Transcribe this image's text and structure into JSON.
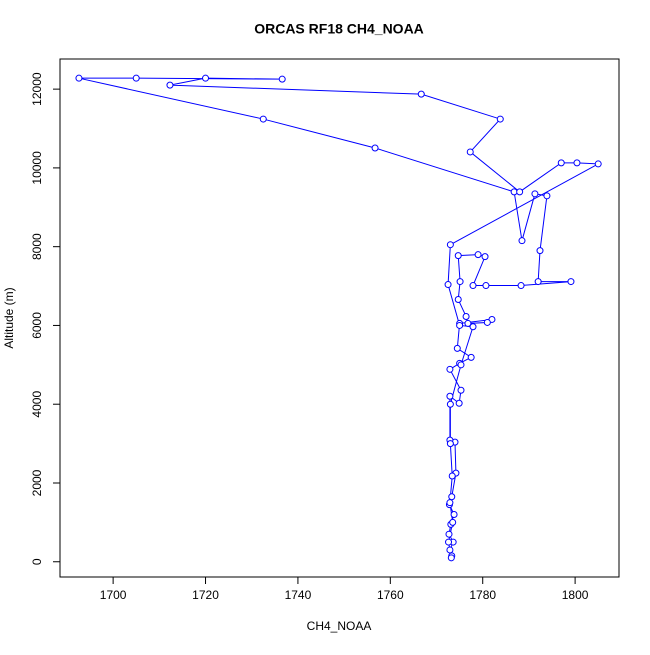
{
  "chart_data": {
    "type": "line",
    "title": "ORCAS RF18 CH4_NOAA",
    "x_label": "CH4_NOAA",
    "y_label": "Altitude (m)",
    "series": [
      {
        "color": "#0000ff",
        "markers": true,
        "x": [
          1773.3,
          1772.9,
          1773.6,
          1772.7,
          1773.1,
          1773.8,
          1772.8,
          1773.3,
          1774.2,
          1774.0,
          1772.9,
          1772.9,
          1774.9,
          1775.3,
          1772.9,
          1775.0,
          1777.5,
          1774.5,
          1775.0,
          1782.0,
          1781.0,
          1776.8,
          1776.4,
          1774.7,
          1775.1,
          1774.7,
          1779.0,
          1780.5,
          1777.9,
          1780.7,
          1788.3,
          1799.1,
          1792.0,
          1792.4,
          1793.9,
          1791.3,
          1788.5,
          1786.8,
          1756.7,
          1732.5,
          1692.6,
          1705.0,
          1736.6,
          1720.0,
          1712.3,
          1766.7,
          1783.8,
          1777.3,
          1788.0,
          1797.0,
          1800.4,
          1805.0,
          1773.0,
          1772.5,
          1775.0,
          1777.9,
          1775.3,
          1773.0,
          1773.0,
          1773.4,
          1772.9,
          1773.5,
          1772.6,
          1773.2
        ],
        "values": [
          150,
          300,
          500,
          700,
          950,
          1200,
          1450,
          1650,
          2250,
          3038,
          3089,
          4203,
          4025,
          4354,
          4886,
          5038,
          5190,
          5418,
          6051,
          6152,
          6076,
          6051,
          6228,
          6658,
          7114,
          7772,
          7797,
          7747,
          7013,
          7013,
          7013,
          7114,
          7114,
          7899,
          9291,
          9342,
          8152,
          9392,
          10506,
          11240,
          12278,
          12278,
          12253,
          12278,
          12101,
          11873,
          11240,
          10405,
          9392,
          10127,
          10127,
          10101,
          8050,
          7038,
          6000,
          5967,
          5000,
          4000,
          3000,
          2177,
          1500,
          1000,
          500,
          100
        ]
      }
    ],
    "xlim": [
      1688.5,
      1809.5
    ],
    "xticks": [
      1700,
      1720,
      1740,
      1760,
      1780,
      1800
    ],
    "ylim": [
      -387,
      12765
    ],
    "yticks": [
      0,
      2000,
      4000,
      6000,
      8000,
      10000,
      12000
    ]
  }
}
